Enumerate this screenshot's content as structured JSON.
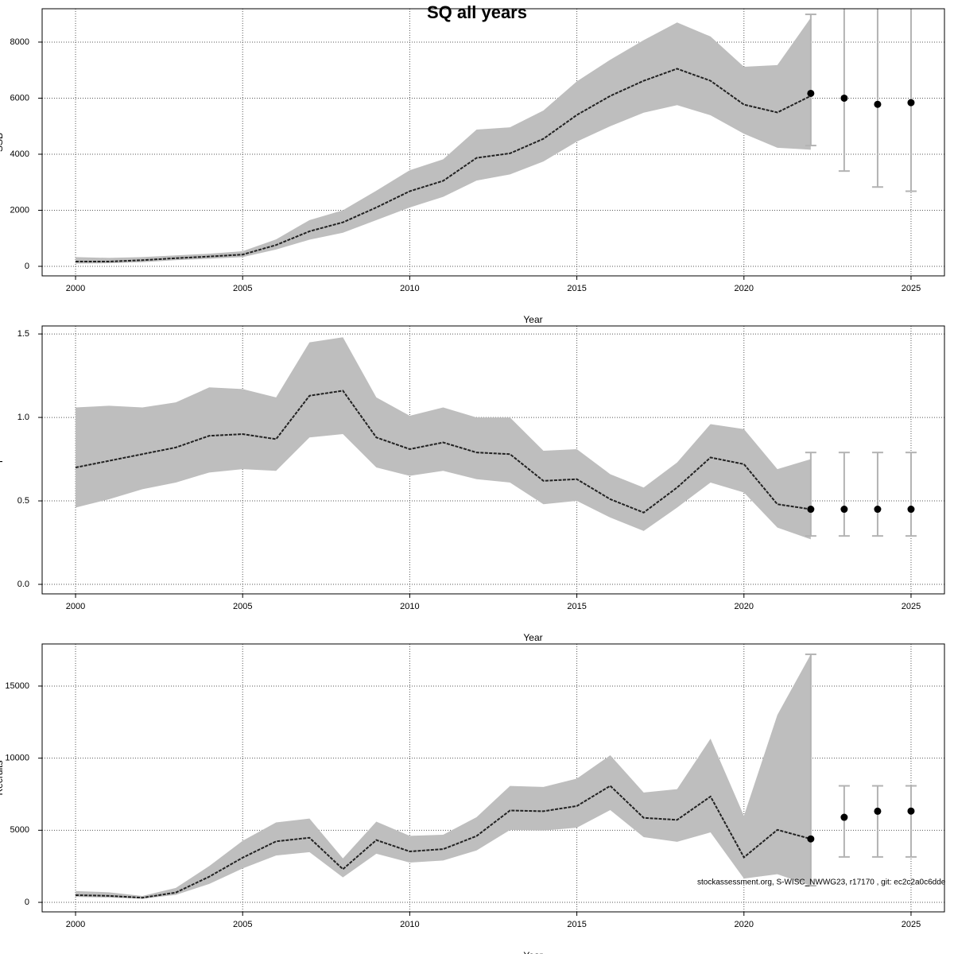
{
  "title": "SQ all years",
  "footnote": "stockassessment.org, S-WISC_NWWG23, r17170 , git: ec2c2a0c6dde",
  "chart_data": [
    {
      "type": "line",
      "ylabel": "SSB",
      "xlabel": "Year",
      "x": [
        2000,
        2001,
        2002,
        2003,
        2004,
        2005,
        2006,
        2007,
        2008,
        2009,
        2010,
        2011,
        2012,
        2013,
        2014,
        2015,
        2016,
        2017,
        2018,
        2019,
        2020,
        2021,
        2022
      ],
      "values": [
        170,
        170,
        220,
        290,
        350,
        420,
        760,
        1250,
        1570,
        2100,
        2680,
        3050,
        3870,
        4030,
        4550,
        5400,
        6080,
        6620,
        7050,
        6620,
        5770,
        5490,
        6080
      ],
      "lower": [
        100,
        110,
        150,
        220,
        270,
        330,
        600,
        950,
        1200,
        1650,
        2100,
        2480,
        3060,
        3280,
        3740,
        4450,
        5000,
        5480,
        5750,
        5390,
        4730,
        4230,
        4160
      ],
      "upper": [
        330,
        300,
        330,
        390,
        450,
        540,
        960,
        1650,
        2000,
        2700,
        3430,
        3820,
        4880,
        4960,
        5560,
        6600,
        7370,
        8070,
        8700,
        8200,
        7120,
        7180,
        8870
      ],
      "forecast": {
        "x": [
          2022,
          2023,
          2024,
          2025
        ],
        "values": [
          6170,
          6000,
          5780,
          5840
        ],
        "lower": [
          4310,
          3400,
          2830,
          2680
        ],
        "upper": [
          8990,
          9300,
          9500,
          9700
        ]
      },
      "color": "#222222",
      "band_color": "#bebebe",
      "errorbar_color": "#b3b3b3",
      "xlim": [
        1999,
        2026
      ],
      "xticks": [
        2000,
        2005,
        2010,
        2015,
        2020,
        2025
      ],
      "ylim": [
        -340,
        9190
      ],
      "yticks": [
        0,
        2000,
        4000,
        6000,
        8000
      ],
      "grid": true
    },
    {
      "type": "line",
      "ylabel": "F",
      "xlabel": "Year",
      "x": [
        2000,
        2001,
        2002,
        2003,
        2004,
        2005,
        2006,
        2007,
        2008,
        2009,
        2010,
        2011,
        2012,
        2013,
        2014,
        2015,
        2016,
        2017,
        2018,
        2019,
        2020,
        2021,
        2022
      ],
      "values": [
        0.7,
        0.74,
        0.78,
        0.82,
        0.89,
        0.9,
        0.87,
        1.13,
        1.16,
        0.88,
        0.81,
        0.85,
        0.79,
        0.78,
        0.62,
        0.63,
        0.51,
        0.43,
        0.58,
        0.76,
        0.72,
        0.48,
        0.45
      ],
      "lower": [
        0.46,
        0.51,
        0.57,
        0.61,
        0.67,
        0.69,
        0.68,
        0.88,
        0.9,
        0.7,
        0.65,
        0.68,
        0.63,
        0.61,
        0.48,
        0.5,
        0.4,
        0.32,
        0.46,
        0.61,
        0.55,
        0.34,
        0.27
      ],
      "upper": [
        1.06,
        1.07,
        1.06,
        1.09,
        1.18,
        1.17,
        1.12,
        1.45,
        1.48,
        1.12,
        1.01,
        1.06,
        1.0,
        1.0,
        0.8,
        0.81,
        0.66,
        0.58,
        0.73,
        0.96,
        0.93,
        0.69,
        0.75
      ],
      "forecast": {
        "x": [
          2022,
          2023,
          2024,
          2025
        ],
        "values": [
          0.45,
          0.45,
          0.45,
          0.45
        ],
        "lower": [
          0.29,
          0.29,
          0.29,
          0.29
        ],
        "upper": [
          0.79,
          0.79,
          0.79,
          0.79
        ]
      },
      "color": "#222222",
      "band_color": "#bebebe",
      "errorbar_color": "#b3b3b3",
      "xlim": [
        1999,
        2026
      ],
      "xticks": [
        2000,
        2005,
        2010,
        2015,
        2020,
        2025
      ],
      "ylim": [
        -0.057,
        1.548
      ],
      "yticks": [
        {
          "value": 0,
          "label": "0.0"
        },
        0.5,
        {
          "value": 1,
          "label": "1.0"
        },
        1.5
      ],
      "grid": true
    },
    {
      "type": "line",
      "ylabel": "Recruits",
      "xlabel": "Year",
      "x": [
        2000,
        2001,
        2002,
        2003,
        2004,
        2005,
        2006,
        2007,
        2008,
        2009,
        2010,
        2011,
        2012,
        2013,
        2014,
        2015,
        2016,
        2017,
        2018,
        2019,
        2020,
        2021,
        2022
      ],
      "values": [
        500,
        450,
        320,
        680,
        1780,
        3100,
        4230,
        4480,
        2300,
        4320,
        3530,
        3690,
        4600,
        6370,
        6320,
        6680,
        8080,
        5860,
        5720,
        7340,
        3120,
        5030,
        4400
      ],
      "lower": [
        380,
        330,
        250,
        520,
        1280,
        2350,
        3250,
        3480,
        1730,
        3370,
        2760,
        2900,
        3600,
        5020,
        4980,
        5180,
        6400,
        4520,
        4200,
        4850,
        1650,
        1950,
        1150
      ],
      "upper": [
        780,
        700,
        440,
        1000,
        2520,
        4270,
        5540,
        5810,
        3050,
        5600,
        4610,
        4690,
        5910,
        8070,
        8000,
        8580,
        10200,
        7620,
        7850,
        11350,
        6000,
        13000,
        17200
      ],
      "forecast": {
        "x": [
          2022,
          2023,
          2024,
          2025
        ],
        "values": [
          4400,
          5900,
          6320,
          6330
        ],
        "lower": [
          1150,
          3150,
          3150,
          3150
        ],
        "upper": [
          17200,
          8080,
          8080,
          8080
        ]
      },
      "color": "#222222",
      "band_color": "#bebebe",
      "errorbar_color": "#b3b3b3",
      "xlim": [
        1999,
        2026
      ],
      "xticks": [
        2000,
        2005,
        2010,
        2015,
        2020,
        2025
      ],
      "ylim": [
        -660,
        17920
      ],
      "yticks": [
        0,
        5000,
        10000,
        15000
      ],
      "grid": true
    }
  ]
}
